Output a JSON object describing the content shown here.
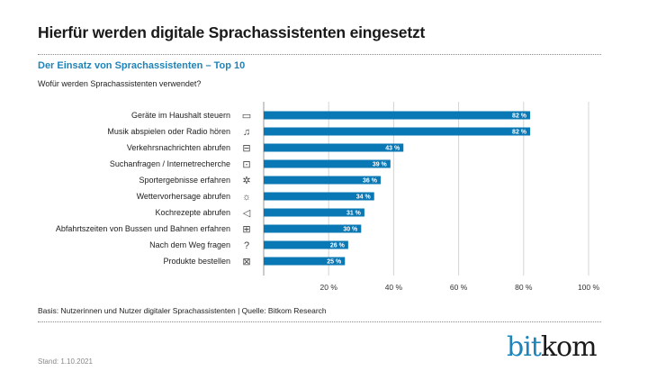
{
  "header": {
    "title": "Hierfür werden digitale Sprachassistenten eingesetzt",
    "subtitle": "Der Einsatz von Sprachassistenten – Top 10",
    "question": "Wofür werden Sprachassistenten verwendet?"
  },
  "chart_data": {
    "type": "bar",
    "orientation": "horizontal",
    "title": "Der Einsatz von Sprachassistenten – Top 10",
    "xlabel": "",
    "ylabel": "",
    "categories": [
      "Geräte im Haushalt steuern",
      "Musik abspielen oder Radio hören",
      "Verkehrsnachrichten abrufen",
      "Suchanfragen / Internetrecherche",
      "Sportergebnisse erfahren",
      "Wettervorhersage abrufen",
      "Kochrezepte abrufen",
      "Abfahrtszeiten von Bussen und Bahnen erfahren",
      "Nach dem Weg fragen",
      "Produkte bestellen"
    ],
    "icons": [
      "appliance-icon",
      "music-note-icon",
      "bus-icon",
      "laptop-search-icon",
      "football-icon",
      "sun-icon",
      "cooking-icon",
      "tram-icon",
      "location-question-icon",
      "shopping-bag-icon"
    ],
    "values": [
      82,
      82,
      43,
      39,
      36,
      34,
      31,
      30,
      26,
      25
    ],
    "value_labels": [
      "82 %",
      "82 %",
      "43 %",
      "39 %",
      "36 %",
      "34 %",
      "31 %",
      "30 %",
      "26 %",
      "25 %"
    ],
    "xlim": [
      0,
      100
    ],
    "xticks": [
      20,
      40,
      60,
      80,
      100
    ],
    "xtick_labels": [
      "20 %",
      "40 %",
      "60 %",
      "80 %",
      "100 %"
    ],
    "grid": true,
    "bar_color": "#0a78b4"
  },
  "footer": {
    "basis": "Basis: Nutzerinnen und Nutzer digitaler Sprachassistenten | Quelle: Bitkom Research",
    "stand": "Stand: 1.10.2021",
    "logo_text_a": "bit",
    "logo_text_b": "kom"
  }
}
